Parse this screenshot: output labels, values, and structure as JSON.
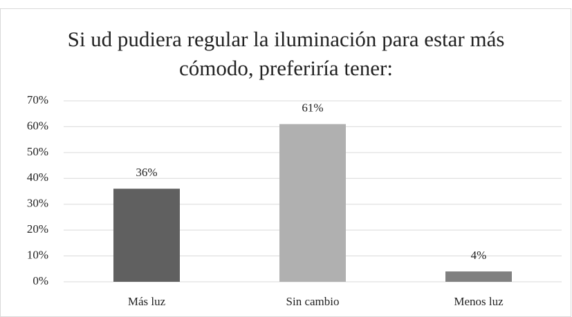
{
  "chart_data": {
    "type": "bar",
    "title": "Si ud pudiera regular la iluminación para estar más cómodo, preferiría tener:",
    "categories": [
      "Más luz",
      "Sin cambio",
      "Menos luz"
    ],
    "values": [
      36,
      61,
      4
    ],
    "value_labels": [
      "36%",
      "61%",
      "4%"
    ],
    "colors": [
      "#606060",
      "#b0b0b0",
      "#808080"
    ],
    "ylim": [
      0,
      70
    ],
    "yticks": [
      {
        "value": 0,
        "label": "0%"
      },
      {
        "value": 10,
        "label": "10%"
      },
      {
        "value": 20,
        "label": "20%"
      },
      {
        "value": 30,
        "label": "30%"
      },
      {
        "value": 40,
        "label": "40%"
      },
      {
        "value": 50,
        "label": "50%"
      },
      {
        "value": 60,
        "label": "60%"
      },
      {
        "value": 70,
        "label": "70%"
      }
    ],
    "grid": true
  }
}
